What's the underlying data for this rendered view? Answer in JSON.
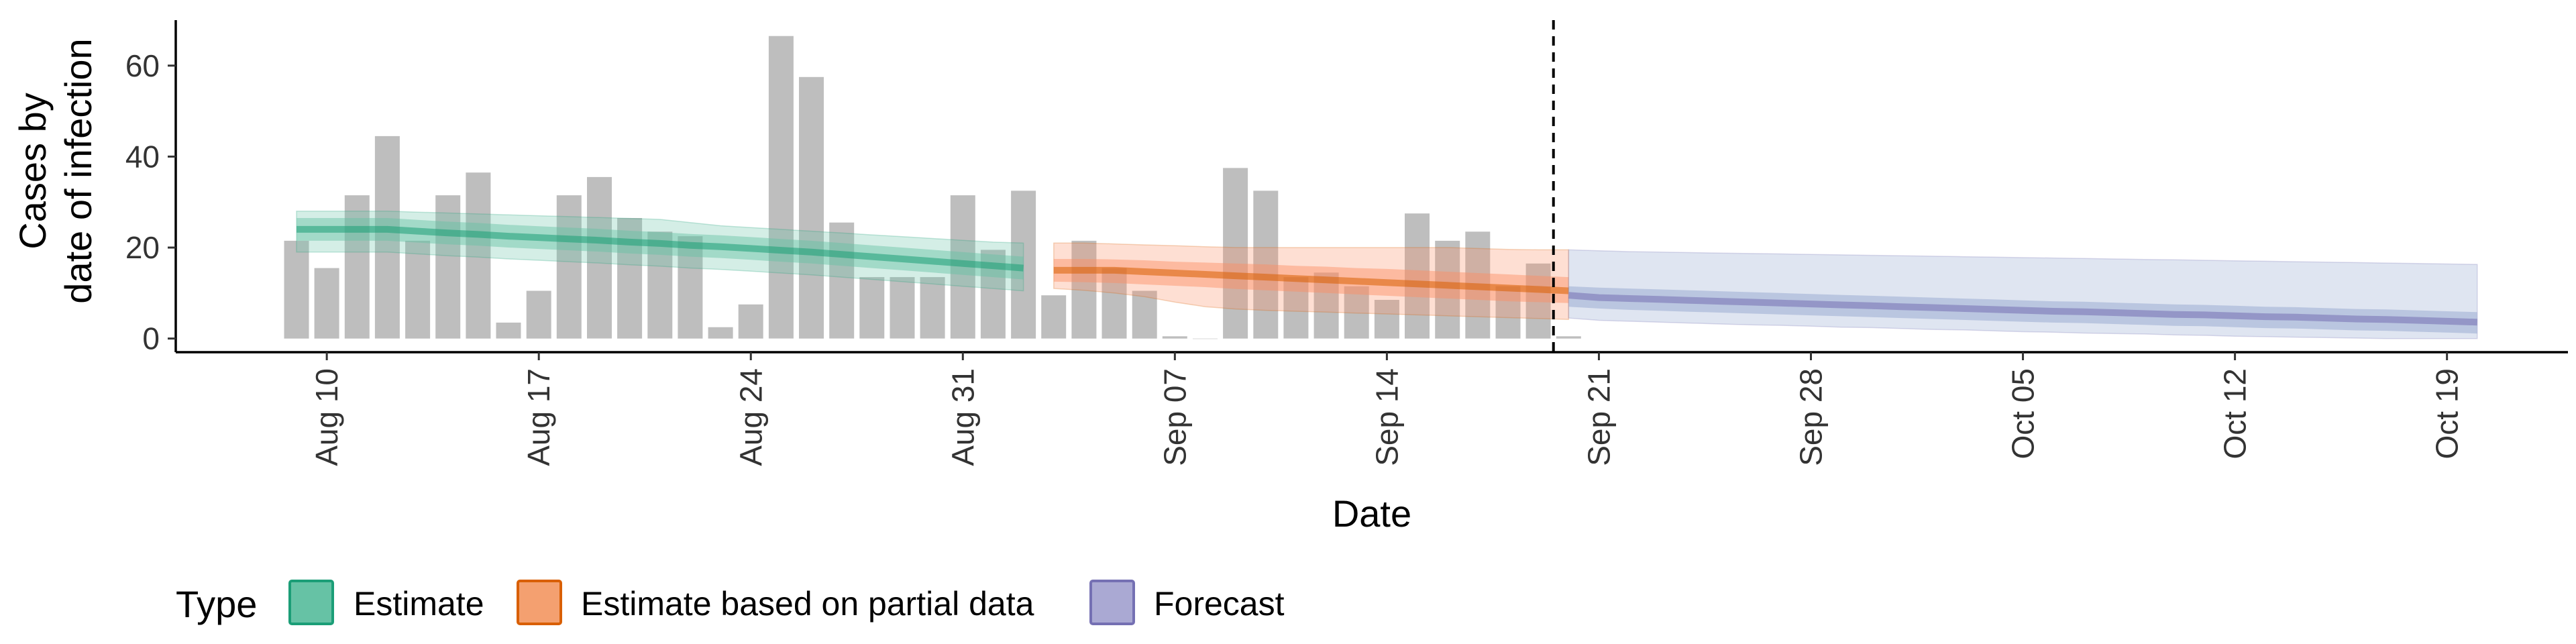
{
  "chart_data": {
    "type": "bar",
    "title": "",
    "xlabel": "Date",
    "ylabel_line1": "Cases by",
    "ylabel_line2": "date of infection",
    "ylim": [
      -3,
      70
    ],
    "yticks": [
      0,
      20,
      40,
      60
    ],
    "x_start": "Aug 09",
    "x_tick_labels": [
      "Aug 10",
      "Aug 17",
      "Aug 24",
      "Aug 31",
      "Sep 07",
      "Sep 14",
      "Sep 21",
      "Sep 28",
      "Oct 05",
      "Oct 12",
      "Oct 19"
    ],
    "x_tick_day_index": [
      1,
      8,
      15,
      22,
      29,
      36,
      43,
      50,
      57,
      64,
      71
    ],
    "forecast_cutoff_day_index": 41.5,
    "bar_color": "#bebebe",
    "bars": [
      21.5,
      15.5,
      31.5,
      44.5,
      21.5,
      31.5,
      36.5,
      3.5,
      10.5,
      31.5,
      35.5,
      26.5,
      23.5,
      22.5,
      2.5,
      7.5,
      66.5,
      57.5,
      25.5,
      13.5,
      13.5,
      13.5,
      31.5,
      19.5,
      32.5,
      9.5,
      21.5,
      15.5,
      10.5,
      0.5,
      0,
      37.5,
      32.5,
      13.5,
      14.5,
      11.5,
      8.5,
      27.5,
      21.5,
      23.5,
      11.5,
      16.5,
      0.5
    ],
    "series": [
      {
        "name": "Estimate",
        "color": "#1b9e77",
        "fill": "#66c2a5",
        "day_start": 0,
        "median": [
          24,
          24,
          24,
          24,
          23.6,
          23.2,
          22.9,
          22.5,
          22.2,
          21.9,
          21.6,
          21.2,
          20.9,
          20.5,
          20.2,
          19.8,
          19.4,
          19,
          18.5,
          18,
          17.5,
          17,
          16.5,
          16,
          15.5
        ],
        "inner_low": [
          21.5,
          21.5,
          21.5,
          21.5,
          21.1,
          20.7,
          20.4,
          20,
          19.7,
          19.4,
          19.1,
          18.7,
          18.4,
          18,
          17.7,
          17.3,
          16.9,
          16.5,
          16,
          15.5,
          15,
          14.5,
          14,
          13.5,
          13
        ],
        "inner_high": [
          26.5,
          26.5,
          26.5,
          26.5,
          26.1,
          25.7,
          25.4,
          25,
          24.7,
          24.4,
          24.1,
          23.7,
          23.4,
          23,
          22.7,
          22.3,
          21.9,
          21.5,
          21,
          20.5,
          20,
          19.5,
          19,
          18.5,
          18
        ],
        "outer_low": [
          19,
          19,
          19,
          19,
          18.6,
          18.2,
          17.9,
          17.5,
          17.2,
          16.9,
          16.6,
          16.2,
          15.9,
          15.5,
          15.2,
          14.8,
          14.4,
          14,
          13.5,
          13,
          12.5,
          12,
          11.5,
          11,
          10.5
        ],
        "outer_high": [
          28,
          28,
          28,
          28,
          27.8,
          27.6,
          27.4,
          27.2,
          27,
          26.8,
          26.6,
          26.4,
          26.2,
          25.5,
          24.8,
          24.4,
          24,
          23.6,
          23.2,
          22.8,
          22.4,
          22,
          21.6,
          21.2,
          21
        ]
      },
      {
        "name": "Estimate based on partial data",
        "color": "#d95f02",
        "fill": "#fc8d62",
        "day_start": 25,
        "median": [
          15,
          15,
          15,
          14.7,
          14.4,
          14.1,
          13.8,
          13.5,
          13.2,
          12.9,
          12.6,
          12.3,
          12,
          11.7,
          11.4,
          11.1,
          10.8,
          10.5
        ],
        "inner_low": [
          12.5,
          12.4,
          12.2,
          11.9,
          11.6,
          11.3,
          10.9,
          10.6,
          10.3,
          10,
          9.7,
          9.4,
          9.1,
          8.8,
          8.5,
          8.2,
          8,
          7.8
        ],
        "inner_high": [
          17.5,
          17.5,
          17.4,
          17.2,
          16.9,
          16.7,
          16.5,
          16.3,
          16,
          15.8,
          15.5,
          15.3,
          15,
          14.7,
          14.4,
          14.1,
          13.8,
          13.5
        ],
        "outer_low": [
          11,
          10.6,
          10,
          9.2,
          8,
          7,
          6.5,
          6.2,
          6,
          5.8,
          5.6,
          5.4,
          5.2,
          5,
          4.8,
          4.6,
          4.4,
          4.2
        ],
        "outer_high": [
          21,
          21,
          20.8,
          20.6,
          20.4,
          20.2,
          20,
          20,
          20,
          20,
          20,
          20,
          20,
          20,
          19.8,
          19.6,
          19.5,
          19.5
        ]
      },
      {
        "name": "Forecast",
        "color": "#7570b3",
        "fill": "#8da0cb",
        "day_start": 42,
        "median": [
          9.5,
          9,
          8.8,
          8.6,
          8.4,
          8.2,
          8,
          7.8,
          7.6,
          7.4,
          7.2,
          7,
          6.8,
          6.6,
          6.4,
          6.2,
          6,
          5.9,
          5.7,
          5.5,
          5.3,
          5.2,
          5,
          4.8,
          4.7,
          4.5,
          4.3,
          4.2,
          4,
          3.8,
          3.6
        ],
        "inner_low": [
          7,
          6.6,
          6.3,
          6.1,
          5.9,
          5.7,
          5.5,
          5.3,
          5.1,
          4.9,
          4.7,
          4.5,
          4.3,
          4.1,
          3.9,
          3.7,
          3.5,
          3.4,
          3.2,
          3,
          2.8,
          2.7,
          2.5,
          2.3,
          2.2,
          2,
          1.8,
          1.7,
          1.5,
          1.3,
          1.1
        ],
        "inner_high": [
          11.5,
          11.2,
          11,
          10.8,
          10.6,
          10.4,
          10.2,
          10,
          9.8,
          9.6,
          9.4,
          9.2,
          9,
          8.8,
          8.6,
          8.4,
          8.2,
          8.1,
          7.9,
          7.7,
          7.5,
          7.4,
          7.2,
          7,
          6.9,
          6.7,
          6.5,
          6.4,
          6.2,
          6,
          5.8
        ],
        "outer_low": [
          4.5,
          4,
          3.8,
          3.6,
          3.4,
          3.2,
          3,
          2.9,
          2.7,
          2.5,
          2.4,
          2.2,
          2,
          1.9,
          1.7,
          1.5,
          1.4,
          1.2,
          1.1,
          1,
          0.8,
          0.7,
          0.5,
          0.4,
          0.3,
          0.2,
          0.1,
          0,
          0,
          0,
          0
        ],
        "outer_high": [
          19.5,
          19.3,
          19.1,
          19,
          18.9,
          18.8,
          18.7,
          18.6,
          18.5,
          18.4,
          18.3,
          18.2,
          18.1,
          18,
          17.9,
          17.8,
          17.7,
          17.6,
          17.5,
          17.4,
          17.3,
          17.2,
          17.1,
          17,
          16.9,
          16.8,
          16.7,
          16.6,
          16.5,
          16.4,
          16.3
        ]
      }
    ],
    "legend": {
      "title": "Type",
      "position": "bottom",
      "items": [
        {
          "label": "Estimate",
          "fill": "#66c2a5",
          "border": "#1b9e77"
        },
        {
          "label": "Estimate based on partial data",
          "fill": "#f4a070",
          "border": "#d95f02"
        },
        {
          "label": "Forecast",
          "fill": "#aaa9d3",
          "border": "#7570b3"
        }
      ]
    },
    "grid": false
  }
}
